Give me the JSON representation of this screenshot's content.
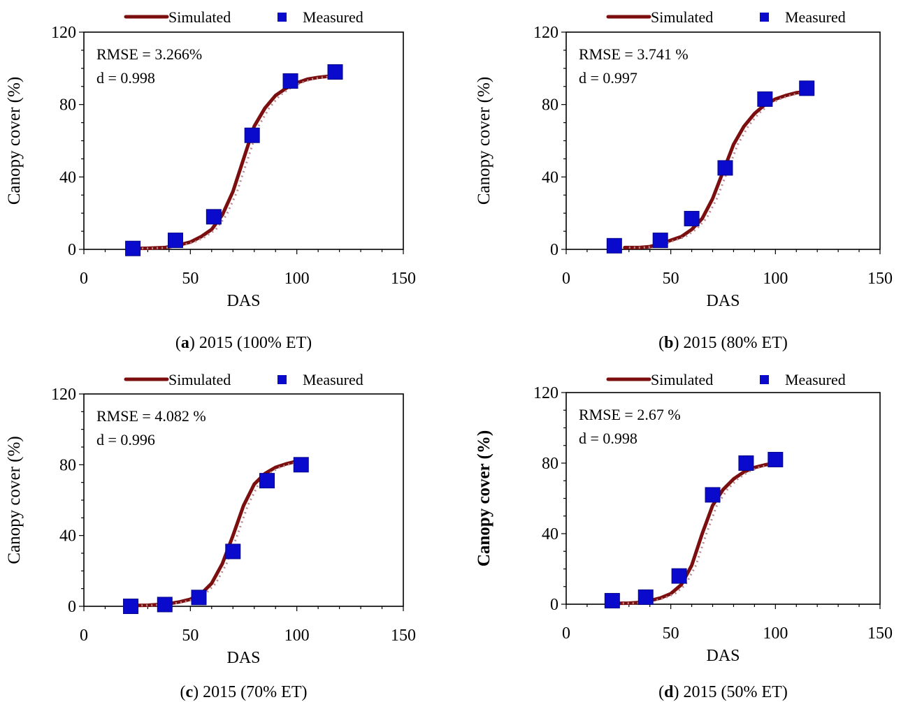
{
  "chart_data": [
    {
      "type": "line",
      "panel_letter": "a",
      "caption": "2015 (100% ET)",
      "xlabel": "DAS",
      "ylabel": "Canopy cover (%)",
      "ylabel_bold": false,
      "xlim": [
        0,
        150
      ],
      "ylim": [
        0,
        120
      ],
      "xticks": [
        "0",
        "50",
        "100",
        "150"
      ],
      "yticks": [
        "0",
        "40",
        "80",
        "120"
      ],
      "grid": false,
      "legend_position": "top",
      "stats": [
        "RMSE = 3.266%",
        "d = 0.998"
      ],
      "series": [
        {
          "name": "Simulated",
          "kind": "line",
          "color": "#7b0f0f",
          "x": [
            23,
            30,
            38,
            45,
            50,
            55,
            60,
            65,
            70,
            75,
            80,
            85,
            90,
            95,
            100,
            105,
            110,
            118
          ],
          "y": [
            0.5,
            0.6,
            1,
            2.5,
            4,
            7,
            11,
            19,
            32,
            50,
            68,
            78,
            85,
            89,
            92,
            94,
            95,
            96
          ]
        },
        {
          "name": "Measured",
          "kind": "marker",
          "color": "#0a0acc",
          "x": [
            23,
            43,
            61,
            79,
            97,
            118
          ],
          "y": [
            0.5,
            5,
            18,
            63,
            93,
            98
          ]
        }
      ]
    },
    {
      "type": "line",
      "panel_letter": "b",
      "caption": "2015 (80% ET)",
      "xlabel": "DAS",
      "ylabel": "Canopy cover (%)",
      "ylabel_bold": false,
      "xlim": [
        0,
        150
      ],
      "ylim": [
        0,
        120
      ],
      "xticks": [
        "0",
        "50",
        "100",
        "150"
      ],
      "yticks": [
        "0",
        "40",
        "80",
        "120"
      ],
      "grid": false,
      "legend_position": "top",
      "stats": [
        "RMSE = 3.741 %",
        "d = 0.997"
      ],
      "series": [
        {
          "name": "Simulated",
          "kind": "line",
          "color": "#7b0f0f",
          "x": [
            28,
            35,
            40,
            45,
            50,
            55,
            60,
            65,
            70,
            75,
            80,
            85,
            90,
            95,
            100,
            105,
            110,
            115
          ],
          "y": [
            1,
            1,
            1.5,
            3,
            5,
            7,
            11,
            17,
            28,
            43,
            58,
            68,
            75,
            80,
            83,
            85,
            86.5,
            87
          ]
        },
        {
          "name": "Measured",
          "kind": "marker",
          "color": "#0a0acc",
          "x": [
            23,
            45,
            60,
            76,
            95,
            115
          ],
          "y": [
            2,
            5,
            17,
            45,
            83,
            89
          ]
        }
      ]
    },
    {
      "type": "line",
      "panel_letter": "c",
      "caption": "2015 (70% ET)",
      "xlabel": "DAS",
      "ylabel": "Canopy cover (%)",
      "ylabel_bold": false,
      "xlim": [
        0,
        150
      ],
      "ylim": [
        0,
        120
      ],
      "xticks": [
        "0",
        "50",
        "100",
        "150"
      ],
      "yticks": [
        "0",
        "40",
        "80",
        "120"
      ],
      "grid": false,
      "legend_position": "top",
      "stats": [
        "RMSE = 4.082 %",
        "d = 0.996"
      ],
      "series": [
        {
          "name": "Simulated",
          "kind": "line",
          "color": "#7b0f0f",
          "x": [
            25,
            30,
            35,
            40,
            45,
            50,
            55,
            60,
            65,
            70,
            75,
            80,
            85,
            90,
            95,
            100
          ],
          "y": [
            0.5,
            0.6,
            1,
            1.5,
            2.5,
            4,
            7,
            13,
            24,
            40,
            57,
            69,
            75,
            78.5,
            80.5,
            82
          ]
        },
        {
          "name": "Measured",
          "kind": "marker",
          "color": "#0a0acc",
          "x": [
            22,
            38,
            54,
            70,
            86,
            102
          ],
          "y": [
            0,
            1,
            5,
            31,
            71,
            80
          ]
        }
      ]
    },
    {
      "type": "line",
      "panel_letter": "d",
      "caption": "2015 (50% ET)",
      "xlabel": "DAS",
      "ylabel": "Canopy cover (%)",
      "ylabel_bold": true,
      "xlim": [
        0,
        150
      ],
      "ylim": [
        0,
        120
      ],
      "xticks": [
        "0",
        "50",
        "100",
        "150"
      ],
      "yticks": [
        "0",
        "40",
        "80",
        "120"
      ],
      "grid": false,
      "legend_position": "top",
      "stats": [
        "RMSE = 2.67 %",
        "d = 0.998"
      ],
      "series": [
        {
          "name": "Simulated",
          "kind": "line",
          "color": "#7b0f0f",
          "x": [
            25,
            30,
            35,
            40,
            45,
            50,
            55,
            60,
            65,
            70,
            75,
            80,
            85,
            90,
            95,
            100
          ],
          "y": [
            0.5,
            0.6,
            1,
            2,
            3.5,
            6,
            11,
            22,
            40,
            56,
            65,
            71,
            75,
            77.5,
            79,
            80
          ]
        },
        {
          "name": "Measured",
          "kind": "marker",
          "color": "#0a0acc",
          "x": [
            22,
            38,
            54,
            70,
            86,
            100
          ],
          "y": [
            2,
            4,
            16,
            62,
            80,
            82
          ]
        }
      ]
    }
  ]
}
